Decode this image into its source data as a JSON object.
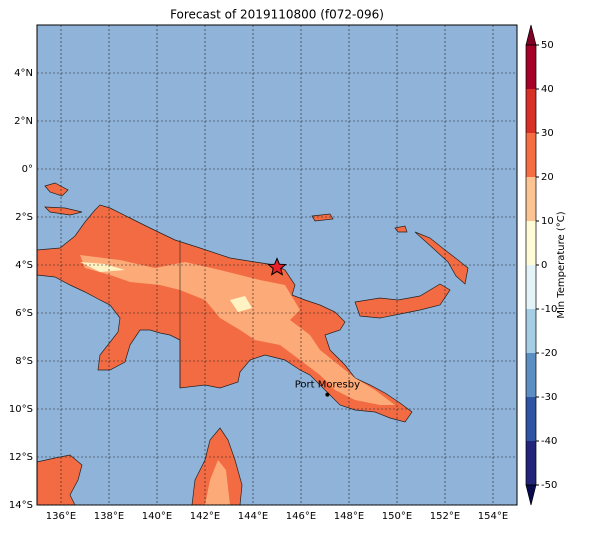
{
  "map": {
    "title": "Forecast of 2019110800 (f072-096)",
    "lonlim": [
      135,
      155
    ],
    "latlim": [
      -14,
      6
    ],
    "lon_ticks": [
      {
        "value": 136,
        "label": "136°E"
      },
      {
        "value": 138,
        "label": "138°E"
      },
      {
        "value": 140,
        "label": "140°E"
      },
      {
        "value": 142,
        "label": "142°E"
      },
      {
        "value": 144,
        "label": "144°E"
      },
      {
        "value": 146,
        "label": "146°E"
      },
      {
        "value": 148,
        "label": "148°E"
      },
      {
        "value": 150,
        "label": "150°E"
      },
      {
        "value": 152,
        "label": "152°E"
      },
      {
        "value": 154,
        "label": "154°E"
      }
    ],
    "lat_ticks": [
      {
        "value": 4,
        "label": "4°N"
      },
      {
        "value": 2,
        "label": "2°N"
      },
      {
        "value": 0,
        "label": "0°"
      },
      {
        "value": -2,
        "label": "2°S"
      },
      {
        "value": -4,
        "label": "4°S"
      },
      {
        "value": -6,
        "label": "6°S"
      },
      {
        "value": -8,
        "label": "8°S"
      },
      {
        "value": -10,
        "label": "10°S"
      },
      {
        "value": -12,
        "label": "12°S"
      },
      {
        "value": -14,
        "label": "14°S"
      }
    ],
    "grid": true,
    "places": [
      {
        "label": "Port Moresby",
        "lon": 147.1,
        "lat": -9.4
      }
    ],
    "marker": {
      "lon": 145,
      "lat": -4.1
    },
    "colorbar": {
      "label": "Min Temperature (°C)",
      "ticks": [
        -50,
        -40,
        -30,
        -20,
        -10,
        0,
        10,
        20,
        30,
        40,
        50
      ],
      "colors": [
        "#24247a",
        "#2f54a3",
        "#5b8fc3",
        "#a5cde3",
        "#e4f3f8",
        "#fffbd6",
        "#fdc493",
        "#f46d43",
        "#d73027",
        "#a50026"
      ],
      "extend_colors": [
        "#0a0a50",
        "#800026"
      ]
    }
  }
}
